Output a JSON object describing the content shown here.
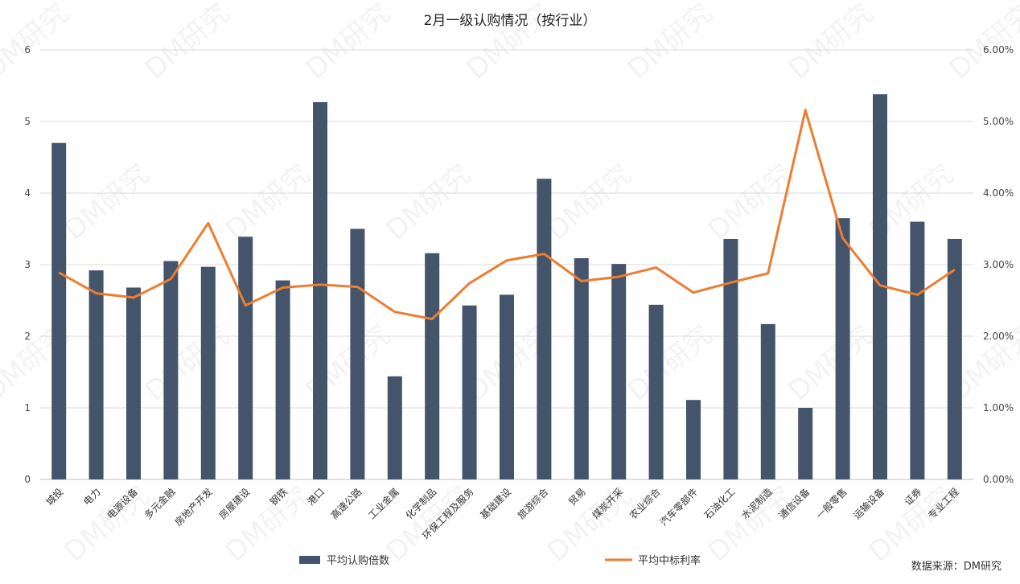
{
  "chart_data": {
    "type": "bar",
    "title": "2月一级认购情况（按行业）",
    "categories": [
      "城投",
      "电力",
      "电源设备",
      "多元金融",
      "房地产开发",
      "房屋建设",
      "钢铁",
      "港口",
      "高速公路",
      "工业金属",
      "化学制品",
      "环保工程及服务",
      "基础建设",
      "旅游综合",
      "贸易",
      "煤炭开采",
      "农业综合",
      "汽车零部件",
      "石油化工",
      "水泥制造",
      "通信设备",
      "一般零售",
      "运输设备",
      "证券",
      "专业工程"
    ],
    "series": [
      {
        "name": "平均认购倍数",
        "type": "bar",
        "axis": "left",
        "color": "#44546a",
        "values": [
          4.7,
          2.92,
          2.68,
          3.05,
          2.97,
          3.39,
          2.78,
          5.27,
          3.5,
          1.44,
          3.16,
          2.43,
          2.58,
          4.2,
          3.09,
          3.01,
          2.44,
          1.11,
          3.36,
          2.17,
          1.0,
          3.65,
          5.38,
          3.6,
          3.36
        ]
      },
      {
        "name": "平均中标利率",
        "type": "line",
        "axis": "right",
        "color": "#ed7d31",
        "values": [
          2.89,
          2.6,
          2.54,
          2.8,
          3.58,
          2.43,
          2.68,
          2.72,
          2.69,
          2.34,
          2.24,
          2.74,
          3.06,
          3.15,
          2.77,
          2.83,
          2.96,
          2.61,
          2.75,
          2.88,
          5.16,
          3.37,
          2.71,
          2.58,
          2.93
        ]
      }
    ],
    "y_left": {
      "min": 0,
      "max": 6,
      "ticks": [
        "0",
        "1",
        "2",
        "3",
        "4",
        "5",
        "6"
      ]
    },
    "y_right": {
      "min": 0,
      "max": 6,
      "ticks": [
        "0.00%",
        "1.00%",
        "2.00%",
        "3.00%",
        "4.00%",
        "5.00%",
        "6.00%"
      ]
    },
    "grid": true,
    "legend": "bottom"
  },
  "source_note": "数据来源：DM研究",
  "watermark": "DM研究"
}
